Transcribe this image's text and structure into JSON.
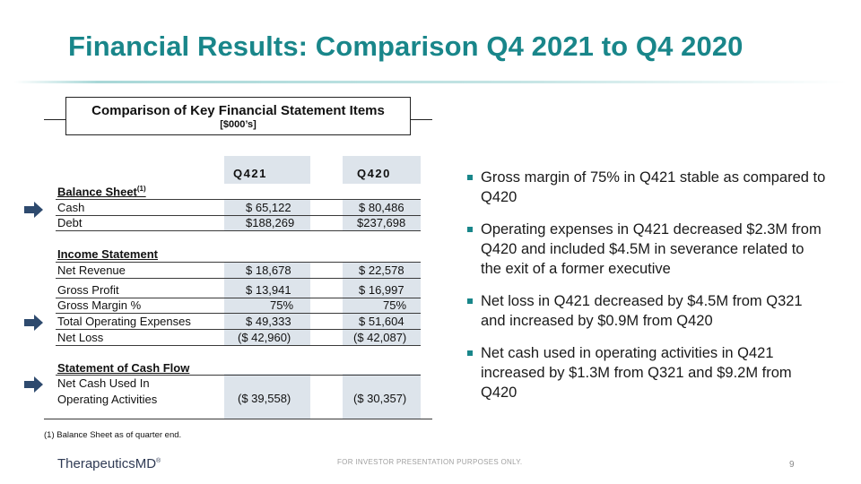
{
  "slide": {
    "title": "Financial Results: Comparison Q4 2021 to Q4 2020",
    "page_number": "9",
    "disclaimer": "FOR INVESTOR PRESENTATION PURPOSES ONLY.",
    "logo_text": "TherapeuticsMD",
    "logo_mark": "®"
  },
  "table": {
    "box_title": "Comparison of Key Financial Statement Items",
    "box_subtitle": "[$000’s]",
    "col1_header": "Q421",
    "col2_header": "Q420",
    "balance_sheet": {
      "heading": "Balance Sheet",
      "heading_sup": "(1)",
      "rows": [
        {
          "label": "Cash",
          "q421": "$  65,122",
          "q420": "$  80,486"
        },
        {
          "label": "Debt",
          "q421": "$188,269",
          "q420": "$237,698"
        }
      ]
    },
    "income_statement": {
      "heading": "Income Statement",
      "rows": [
        {
          "label": "Net Revenue",
          "q421": "$  18,678",
          "q420": "$  22,578"
        },
        {
          "label": "Gross Profit",
          "q421": "$  13,941",
          "q420": "$  16,997"
        },
        {
          "label": "Gross Margin %",
          "q421": "75%",
          "q420": "75%"
        },
        {
          "label": "Total Operating Expenses",
          "q421": "$  49,333",
          "q420": "$  51,604"
        },
        {
          "label": "Net Loss",
          "q421": "($ 42,960)",
          "q420": "($ 42,087)"
        }
      ]
    },
    "cash_flow": {
      "heading": "Statement of Cash Flow",
      "label_line1": "Net Cash Used In",
      "label_line2": "Operating Activities",
      "q421": "($ 39,558)",
      "q420": "($ 30,357)"
    },
    "footnote": "(1)  Balance Sheet as of quarter end."
  },
  "bullets": [
    "Gross margin of 75% in Q421 stable as compared to Q420",
    "Operating expenses in Q421 decreased $2.3M from Q420 and included $4.5M in severance related to the exit of a former executive",
    "Net loss in Q421 decreased by $4.5M from Q321 and increased by $0.9M from Q420",
    "Net cash used in operating activities in Q421 increased by $1.3M from Q321 and $9.2M from Q420"
  ],
  "colors": {
    "accent": "#19868a",
    "column_shade": "#dde4eb",
    "arrow": "#2e4a6e"
  }
}
